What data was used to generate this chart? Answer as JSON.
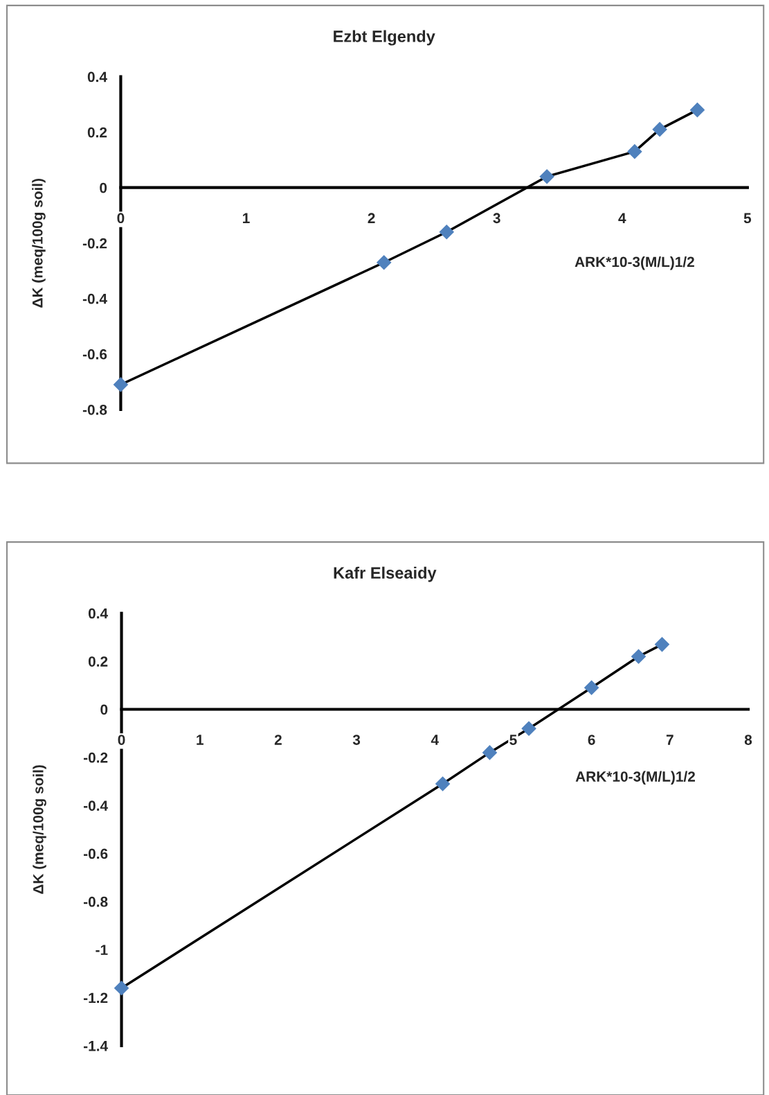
{
  "chart_data": [
    {
      "type": "line",
      "title": "Ezbt Elgendy",
      "xlabel": "ARK*10-3(M/L)1/2",
      "ylabel": "ΔK (meq/100g soil)",
      "marker": "diamond",
      "line_style": "solid",
      "x": [
        0,
        2.1,
        2.6,
        3.4,
        4.1,
        4.3,
        4.6
      ],
      "series": [
        {
          "color": "#4f81bd",
          "values": [
            -0.71,
            -0.27,
            -0.16,
            0.04,
            0.13,
            0.21,
            0.28
          ]
        }
      ],
      "xlim": [
        0,
        5
      ],
      "xticks": [
        0,
        1,
        2,
        3,
        4,
        5
      ],
      "ylim": [
        -0.8,
        0.4
      ],
      "yticks": [
        -0.8,
        -0.6,
        -0.4,
        -0.2,
        0,
        0.2,
        0.4
      ]
    },
    {
      "type": "line",
      "title": "Kafr Elseaidy",
      "xlabel": "ARK*10-3(M/L)1/2",
      "ylabel": "ΔK (meq/100g soil)",
      "marker": "diamond",
      "line_style": "solid",
      "x": [
        0,
        4.1,
        4.7,
        5.2,
        6.0,
        6.6,
        6.9
      ],
      "series": [
        {
          "color": "#4f81bd",
          "values": [
            -1.16,
            -0.31,
            -0.18,
            -0.08,
            0.09,
            0.22,
            0.27
          ]
        }
      ],
      "xlim": [
        0,
        8
      ],
      "xticks": [
        0,
        1,
        2,
        3,
        4,
        5,
        6,
        7,
        8
      ],
      "ylim": [
        -1.4,
        0.4
      ],
      "yticks": [
        -1.4,
        -1.2,
        -1,
        -0.8,
        -0.6,
        -0.4,
        -0.2,
        0,
        0.2,
        0.4
      ]
    }
  ]
}
